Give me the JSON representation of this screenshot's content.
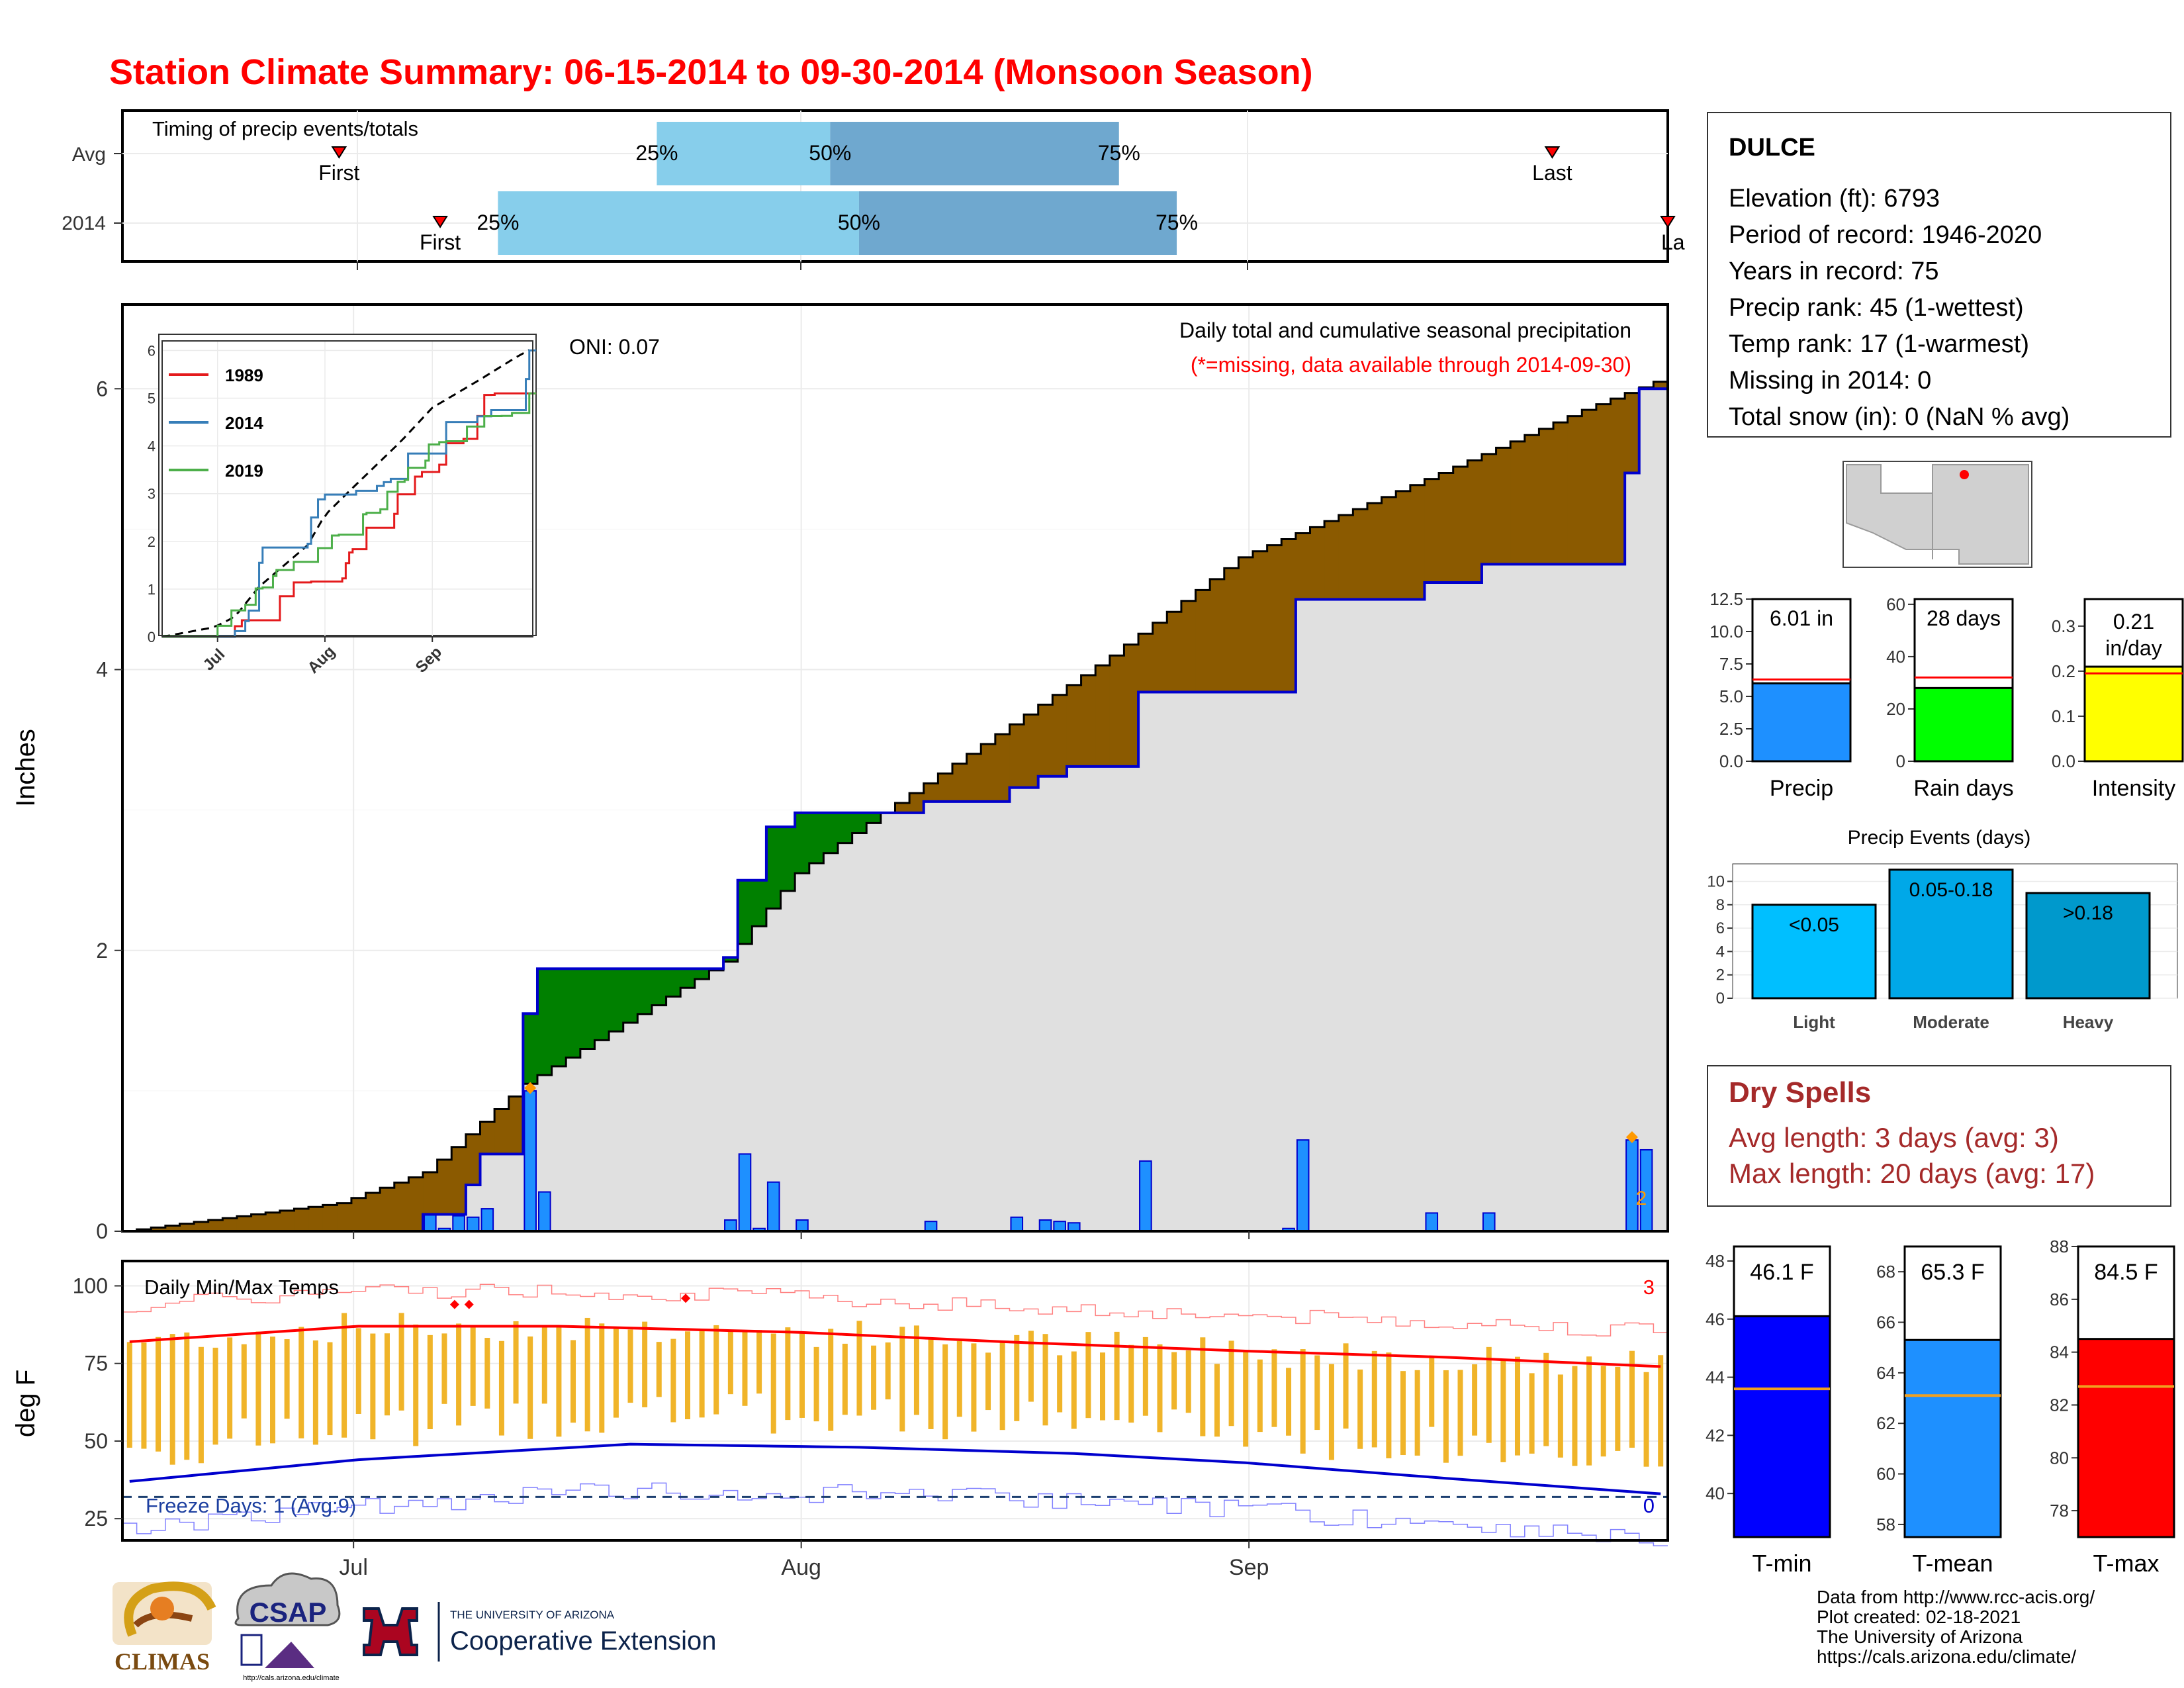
{
  "title": "Station Climate Summary: 06-15-2014 to 09-30-2014 (Monsoon Season)",
  "timing": {
    "label": "Timing of precip events/totals",
    "rows": [
      "Avg",
      "2014"
    ],
    "first_label": "First",
    "last_label": "Last",
    "last_label_truncated": "La",
    "pct_labels": [
      "25%",
      "50%",
      "75%"
    ],
    "avg": {
      "first": "2014-06-30",
      "p25": "2014-07-22",
      "p50": "2014-08-03",
      "p75": "2014-08-23",
      "last": "2014-09-22"
    },
    "y2014": {
      "first": "2014-07-07",
      "p25": "2014-07-11",
      "p50": "2014-08-05",
      "p75": "2014-08-27",
      "last": "2014-09-30"
    },
    "colors": {
      "light": "#87ceeb",
      "dark": "#6fa8cf",
      "marker": "#ff0000"
    }
  },
  "station": {
    "name": "DULCE",
    "lines": [
      "Elevation (ft): 6793",
      "Period of record: 1946-2020",
      "Years in record: 75",
      "Precip rank: 45 (1-wettest)",
      "Temp rank: 17 (1-warmest)",
      "Missing in 2014: 0",
      "Total snow (in): 0 (NaN % avg)"
    ]
  },
  "precip_panel": {
    "ylabel": "Inches",
    "annotation_title": "Daily total and cumulative seasonal precipitation",
    "annotation_missing": "(*=missing, data available through 2014-09-30)",
    "oni": "ONI: 0.07",
    "count_label": "2",
    "x_ticks": [
      "Jul",
      "Aug",
      "Sep"
    ],
    "y_ticks": [
      "0",
      "2",
      "4",
      "6"
    ],
    "colors": {
      "above": "#008000",
      "below": "#8b5a00",
      "area": "#e0e0e0",
      "bar": "#1e90ff",
      "line": "#0000cd"
    }
  },
  "inset": {
    "x_ticks": [
      "Jul",
      "Aug",
      "Sep"
    ],
    "y_ticks": [
      "0",
      "1",
      "2",
      "3",
      "4",
      "5",
      "6"
    ],
    "legend": [
      {
        "name": "1989",
        "color": "#e41a1c"
      },
      {
        "name": "2014",
        "color": "#377eb8"
      },
      {
        "name": "2019",
        "color": "#4daf4a"
      }
    ]
  },
  "temp_panel": {
    "ylabel": "deg F",
    "label": "Daily Min/Max Temps",
    "freeze": "Freeze Days: 1 (Avg:9)",
    "count_top": "3",
    "count_bottom": "0",
    "y_ticks": [
      "25",
      "50",
      "75",
      "100"
    ],
    "x_ticks": [
      "Jul",
      "Aug",
      "Sep"
    ],
    "colors": {
      "bar": "#f0b429",
      "max": "#ff0000",
      "min": "#0000cd"
    }
  },
  "summary_bars": [
    {
      "label": "Precip",
      "value_text": "6.01 in",
      "value": 6.01,
      "avg": 6.3,
      "ymax": 12.5,
      "ticks": [
        "0.0",
        "2.5",
        "5.0",
        "7.5",
        "10.0",
        "12.5"
      ],
      "color": "#1e90ff"
    },
    {
      "label": "Rain days",
      "value_text": "28 days",
      "value": 28,
      "avg": 32,
      "ymax": 62,
      "ticks": [
        "0",
        "20",
        "40",
        "60"
      ],
      "color": "#00ff00"
    },
    {
      "label": "Intensity",
      "value_text": "0.21 in/day",
      "value": 0.21,
      "avg": 0.195,
      "ymax": 0.36,
      "ticks": [
        "0.0",
        "0.1",
        "0.2",
        "0.3"
      ],
      "color": "#ffff00"
    }
  ],
  "precip_events": {
    "title": "Precip Events (days)",
    "ticks": [
      "0",
      "2",
      "4",
      "6",
      "8",
      "10"
    ],
    "bars": [
      {
        "label": "Light",
        "range": "<0.05",
        "value": 8,
        "color": "#00bfff"
      },
      {
        "label": "Moderate",
        "range": "0.05-0.18",
        "value": 11,
        "color": "#00a8e8"
      },
      {
        "label": "Heavy",
        "range": ">0.18",
        "value": 9,
        "color": "#0099cc"
      }
    ]
  },
  "dry_spells": {
    "title": "Dry Spells",
    "avg_line": "Avg length: 3 days (avg: 3)",
    "max_line": "Max length: 20 days (avg: 17)",
    "color": "#a52a2a"
  },
  "temp_bars": [
    {
      "label": "T-min",
      "value_text": "46.1 F",
      "value": 46.1,
      "avg": 43.6,
      "ymin": 38.5,
      "ymax": 48.5,
      "ticks": [
        "40",
        "42",
        "44",
        "46",
        "48"
      ],
      "color": "#0000ff"
    },
    {
      "label": "T-mean",
      "value_text": "65.3 F",
      "value": 65.3,
      "avg": 63.1,
      "ymin": 57.5,
      "ymax": 69,
      "ticks": [
        "58",
        "60",
        "62",
        "64",
        "66",
        "68"
      ],
      "color": "#1e90ff"
    },
    {
      "label": "T-max",
      "value_text": "84.5 F",
      "value": 84.5,
      "avg": 82.7,
      "ymin": 77,
      "ymax": 88,
      "ticks": [
        "78",
        "80",
        "82",
        "84",
        "86",
        "88"
      ],
      "color": "#ff0000"
    }
  ],
  "footer": {
    "lines": [
      "Data from http://www.rcc-acis.org/",
      "Plot created: 02-18-2021",
      "The University of Arizona",
      "https://cals.arizona.edu/climate/"
    ]
  },
  "logos": {
    "climas": "CLIMAS",
    "csap": "CSAP",
    "csap_url": "http://cals.arizona.edu/climate",
    "ua_small": "THE UNIVERSITY OF ARIZONA",
    "ua_big": "Cooperative Extension"
  },
  "chart_data": {
    "type": "step",
    "x_range": [
      "2014-06-15",
      "2014-09-30"
    ],
    "y_range": [
      0,
      6.6
    ],
    "daily_precip_2014": [
      {
        "date": "2014-07-06",
        "value": 0.12
      },
      {
        "date": "2014-07-07",
        "value": 0.02
      },
      {
        "date": "2014-07-08",
        "value": 0.11
      },
      {
        "date": "2014-07-09",
        "value": 0.1
      },
      {
        "date": "2014-07-10",
        "value": 0.16
      },
      {
        "date": "2014-07-13",
        "value": 1.0
      },
      {
        "date": "2014-07-14",
        "value": 0.28
      },
      {
        "date": "2014-07-27",
        "value": 0.08
      },
      {
        "date": "2014-07-28",
        "value": 0.55
      },
      {
        "date": "2014-07-29",
        "value": 0.02
      },
      {
        "date": "2014-07-30",
        "value": 0.35
      },
      {
        "date": "2014-08-01",
        "value": 0.08
      },
      {
        "date": "2014-08-10",
        "value": 0.07
      },
      {
        "date": "2014-08-16",
        "value": 0.1
      },
      {
        "date": "2014-08-18",
        "value": 0.08
      },
      {
        "date": "2014-08-19",
        "value": 0.07
      },
      {
        "date": "2014-08-20",
        "value": 0.06
      },
      {
        "date": "2014-08-25",
        "value": 0.5
      },
      {
        "date": "2014-09-04",
        "value": 0.02
      },
      {
        "date": "2014-09-05",
        "value": 0.65
      },
      {
        "date": "2014-09-14",
        "value": 0.13
      },
      {
        "date": "2014-09-18",
        "value": 0.13
      },
      {
        "date": "2014-09-28",
        "value": 0.65
      },
      {
        "date": "2014-09-29",
        "value": 0.58
      }
    ],
    "cumulative_avg": [
      {
        "date": "2014-06-15",
        "value": 0.0
      },
      {
        "date": "2014-06-30",
        "value": 0.2
      },
      {
        "date": "2014-07-06",
        "value": 0.42
      },
      {
        "date": "2014-07-13",
        "value": 1.05
      },
      {
        "date": "2014-07-27",
        "value": 1.92
      },
      {
        "date": "2014-08-01",
        "value": 2.55
      },
      {
        "date": "2014-08-08",
        "value": 3.05
      },
      {
        "date": "2014-08-23",
        "value": 4.1
      },
      {
        "date": "2014-09-01",
        "value": 4.8
      },
      {
        "date": "2014-09-15",
        "value": 5.4
      },
      {
        "date": "2014-09-25",
        "value": 5.85
      },
      {
        "date": "2014-09-30",
        "value": 6.05
      }
    ],
    "cumulative_2014": [
      {
        "date": "2014-06-15",
        "value": 0.0
      },
      {
        "date": "2014-07-06",
        "value": 0.12
      },
      {
        "date": "2014-07-09",
        "value": 0.33
      },
      {
        "date": "2014-07-10",
        "value": 0.55
      },
      {
        "date": "2014-07-13",
        "value": 1.55
      },
      {
        "date": "2014-07-14",
        "value": 1.87
      },
      {
        "date": "2014-07-27",
        "value": 1.95
      },
      {
        "date": "2014-07-28",
        "value": 2.5
      },
      {
        "date": "2014-07-30",
        "value": 2.88
      },
      {
        "date": "2014-08-01",
        "value": 2.98
      },
      {
        "date": "2014-08-10",
        "value": 3.06
      },
      {
        "date": "2014-08-16",
        "value": 3.16
      },
      {
        "date": "2014-08-18",
        "value": 3.24
      },
      {
        "date": "2014-08-20",
        "value": 3.31
      },
      {
        "date": "2014-08-25",
        "value": 3.84
      },
      {
        "date": "2014-09-05",
        "value": 4.5
      },
      {
        "date": "2014-09-14",
        "value": 4.62
      },
      {
        "date": "2014-09-18",
        "value": 4.75
      },
      {
        "date": "2014-09-28",
        "value": 5.4
      },
      {
        "date": "2014-09-29",
        "value": 6.0
      }
    ],
    "temperature": {
      "y_range": [
        18,
        108
      ],
      "avg_max": [
        {
          "date": "2014-06-15",
          "value": 82
        },
        {
          "date": "2014-07-01",
          "value": 87
        },
        {
          "date": "2014-07-15",
          "value": 87
        },
        {
          "date": "2014-08-01",
          "value": 85
        },
        {
          "date": "2014-08-15",
          "value": 82
        },
        {
          "date": "2014-09-01",
          "value": 79
        },
        {
          "date": "2014-09-15",
          "value": 77
        },
        {
          "date": "2014-09-30",
          "value": 74
        }
      ],
      "avg_min": [
        {
          "date": "2014-06-15",
          "value": 37
        },
        {
          "date": "2014-07-01",
          "value": 44
        },
        {
          "date": "2014-07-20",
          "value": 49
        },
        {
          "date": "2014-08-05",
          "value": 48
        },
        {
          "date": "2014-08-20",
          "value": 46
        },
        {
          "date": "2014-09-01",
          "value": 43
        },
        {
          "date": "2014-09-15",
          "value": 38
        },
        {
          "date": "2014-09-30",
          "value": 33
        }
      ],
      "freeze_line": 32
    }
  }
}
